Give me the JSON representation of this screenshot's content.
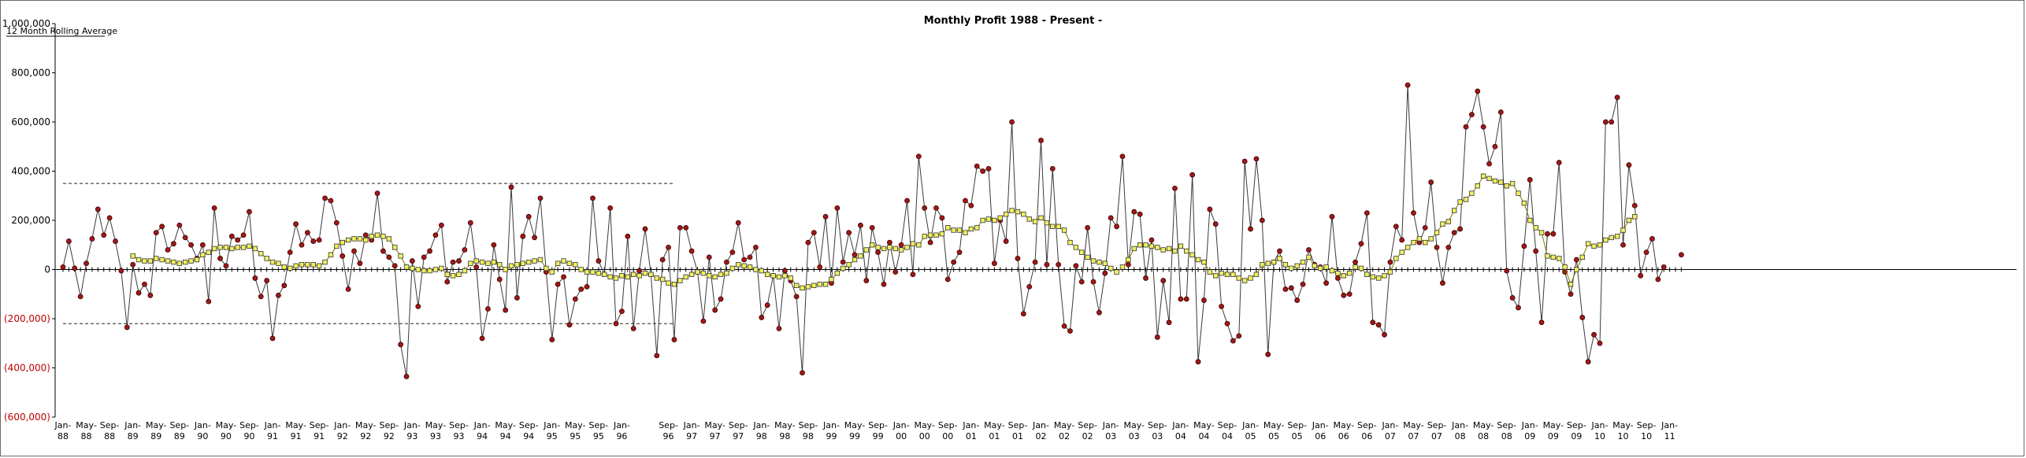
{
  "chart_data": {
    "type": "line",
    "title": "Monthly Profit 1988 - Present  -",
    "legend_label": "12 Month Rolling Average",
    "legend_placement": "top-left",
    "ylim": [
      -600000,
      1000000
    ],
    "y_ticks": [
      {
        "value": 1000000,
        "label": "1,000,000"
      },
      {
        "value": 800000,
        "label": "800,000"
      },
      {
        "value": 600000,
        "label": "600,000"
      },
      {
        "value": 400000,
        "label": "400,000"
      },
      {
        "value": 200000,
        "label": "200,000"
      },
      {
        "value": 0,
        "label": "0"
      },
      {
        "value": -200000,
        "label": "(200,000)"
      },
      {
        "value": -400000,
        "label": "(400,000)"
      },
      {
        "value": -600000,
        "label": "(600,000)"
      }
    ],
    "x_ticks": [
      {
        "i": 0,
        "l1": "Jan-",
        "l2": "88"
      },
      {
        "i": 4,
        "l1": "May-",
        "l2": "88"
      },
      {
        "i": 8,
        "l1": "Sep-",
        "l2": "88"
      },
      {
        "i": 12,
        "l1": "Jan-",
        "l2": "89"
      },
      {
        "i": 16,
        "l1": "May-",
        "l2": "89"
      },
      {
        "i": 20,
        "l1": "Sep-",
        "l2": "89"
      },
      {
        "i": 24,
        "l1": "Jan-",
        "l2": "90"
      },
      {
        "i": 28,
        "l1": "May-",
        "l2": "90"
      },
      {
        "i": 32,
        "l1": "Sep-",
        "l2": "90"
      },
      {
        "i": 36,
        "l1": "Jan-",
        "l2": "91"
      },
      {
        "i": 40,
        "l1": "May-",
        "l2": "91"
      },
      {
        "i": 44,
        "l1": "Sep-",
        "l2": "91"
      },
      {
        "i": 48,
        "l1": "Jan-",
        "l2": "92"
      },
      {
        "i": 52,
        "l1": "May-",
        "l2": "92"
      },
      {
        "i": 56,
        "l1": "Sep-",
        "l2": "92"
      },
      {
        "i": 60,
        "l1": "Jan-",
        "l2": "93"
      },
      {
        "i": 64,
        "l1": "May-",
        "l2": "93"
      },
      {
        "i": 68,
        "l1": "Sep-",
        "l2": "93"
      },
      {
        "i": 72,
        "l1": "Jan-",
        "l2": "94"
      },
      {
        "i": 76,
        "l1": "May-",
        "l2": "94"
      },
      {
        "i": 80,
        "l1": "Sep-",
        "l2": "94"
      },
      {
        "i": 84,
        "l1": "Jan-",
        "l2": "95"
      },
      {
        "i": 88,
        "l1": "May-",
        "l2": "95"
      },
      {
        "i": 92,
        "l1": "Sep-",
        "l2": "95"
      },
      {
        "i": 96,
        "l1": "Jan-",
        "l2": "96"
      },
      {
        "i": 104,
        "l1": "Sep-",
        "l2": "96"
      },
      {
        "i": 108,
        "l1": "Jan-",
        "l2": "97"
      },
      {
        "i": 112,
        "l1": "May-",
        "l2": "97"
      },
      {
        "i": 116,
        "l1": "Sep-",
        "l2": "97"
      },
      {
        "i": 120,
        "l1": "Jan-",
        "l2": "98"
      },
      {
        "i": 124,
        "l1": "May-",
        "l2": "98"
      },
      {
        "i": 128,
        "l1": "Sep-",
        "l2": "98"
      },
      {
        "i": 132,
        "l1": "Jan-",
        "l2": "99"
      },
      {
        "i": 136,
        "l1": "May-",
        "l2": "99"
      },
      {
        "i": 140,
        "l1": "Sep-",
        "l2": "99"
      },
      {
        "i": 144,
        "l1": "Jan-",
        "l2": "00"
      },
      {
        "i": 148,
        "l1": "May-",
        "l2": "00"
      },
      {
        "i": 152,
        "l1": "Sep-",
        "l2": "00"
      },
      {
        "i": 156,
        "l1": "Jan-",
        "l2": "01"
      },
      {
        "i": 160,
        "l1": "May-",
        "l2": "01"
      },
      {
        "i": 164,
        "l1": "Sep-",
        "l2": "01"
      },
      {
        "i": 168,
        "l1": "Jan-",
        "l2": "02"
      },
      {
        "i": 172,
        "l1": "May-",
        "l2": "02"
      },
      {
        "i": 176,
        "l1": "Sep-",
        "l2": "02"
      },
      {
        "i": 180,
        "l1": "Jan-",
        "l2": "03"
      },
      {
        "i": 184,
        "l1": "May-",
        "l2": "03"
      },
      {
        "i": 188,
        "l1": "Sep-",
        "l2": "03"
      },
      {
        "i": 192,
        "l1": "Jan-",
        "l2": "04"
      },
      {
        "i": 196,
        "l1": "May-",
        "l2": "04"
      },
      {
        "i": 200,
        "l1": "Sep-",
        "l2": "04"
      },
      {
        "i": 204,
        "l1": "Jan-",
        "l2": "05"
      },
      {
        "i": 208,
        "l1": "May-",
        "l2": "05"
      },
      {
        "i": 212,
        "l1": "Sep-",
        "l2": "05"
      },
      {
        "i": 216,
        "l1": "Jan-",
        "l2": "06"
      },
      {
        "i": 220,
        "l1": "May-",
        "l2": "06"
      },
      {
        "i": 224,
        "l1": "Sep-",
        "l2": "06"
      },
      {
        "i": 228,
        "l1": "Jan-",
        "l2": "07"
      },
      {
        "i": 232,
        "l1": "May-",
        "l2": "07"
      },
      {
        "i": 236,
        "l1": "Sep-",
        "l2": "07"
      },
      {
        "i": 240,
        "l1": "Jan-",
        "l2": "08"
      },
      {
        "i": 244,
        "l1": "May-",
        "l2": "08"
      },
      {
        "i": 248,
        "l1": "Sep-",
        "l2": "08"
      },
      {
        "i": 252,
        "l1": "Jan-",
        "l2": "09"
      },
      {
        "i": 256,
        "l1": "May-",
        "l2": "09"
      },
      {
        "i": 260,
        "l1": "Sep-",
        "l2": "09"
      },
      {
        "i": 264,
        "l1": "Jan-",
        "l2": "10"
      },
      {
        "i": 268,
        "l1": "May-",
        "l2": "10"
      },
      {
        "i": 272,
        "l1": "Sep-",
        "l2": "10"
      },
      {
        "i": 276,
        "l1": "Jan-",
        "l2": "11"
      }
    ],
    "reference_lines": [
      {
        "value": 350000,
        "from_index": 0,
        "to_index": 105,
        "style": "dashed"
      },
      {
        "value": -220000,
        "from_index": 0,
        "to_index": 105,
        "style": "dashed"
      }
    ],
    "grid": false,
    "series": [
      {
        "role": "monthly",
        "color": "#a01818",
        "marker": "circle",
        "values": [
          10000,
          115000,
          5000,
          -110000,
          25000,
          125000,
          245000,
          140000,
          210000,
          115000,
          -5000,
          -235000,
          20000,
          -95000,
          -60000,
          -105000,
          150000,
          175000,
          80000,
          105000,
          180000,
          130000,
          100000,
          45000,
          100000,
          -130000,
          250000,
          45000,
          15000,
          135000,
          120000,
          140000,
          235000,
          -35000,
          -110000,
          -45000,
          -280000,
          -105000,
          -65000,
          70000,
          185000,
          100000,
          150000,
          115000,
          120000,
          290000,
          280000,
          190000,
          55000,
          -80000,
          75000,
          25000,
          140000,
          120000,
          310000,
          75000,
          50000,
          15000,
          -305000,
          -435000,
          35000,
          -150000,
          50000,
          75000,
          140000,
          180000,
          -50000,
          30000,
          35000,
          80000,
          190000,
          10000,
          -280000,
          -160000,
          100000,
          -40000,
          -165000,
          335000,
          -115000,
          135000,
          215000,
          130000,
          290000,
          -10000,
          -285000,
          -60000,
          -30000,
          -225000,
          -120000,
          -80000,
          -70000,
          290000,
          35000,
          -20000,
          250000,
          -220000,
          -170000,
          135000,
          -240000,
          -5000,
          165000,
          -20000,
          -350000,
          40000,
          90000,
          -285000,
          170000,
          170000,
          75000,
          -10000,
          -210000,
          50000,
          -165000,
          -120000,
          30000,
          70000,
          190000,
          40000,
          50000,
          90000,
          -195000,
          -145000,
          -25000,
          -240000,
          -5000,
          -45000,
          -110000,
          -420000,
          110000,
          150000,
          10000,
          215000,
          -55000,
          250000,
          30000,
          150000,
          60000,
          180000,
          -45000,
          170000,
          70000,
          -60000,
          110000,
          -10000,
          100000,
          280000,
          -20000,
          460000,
          250000,
          110000,
          250000,
          210000,
          -40000,
          30000,
          70000,
          280000,
          260000,
          420000,
          400000,
          410000,
          25000,
          200000,
          115000,
          600000,
          45000,
          -180000,
          -70000,
          30000,
          525000,
          20000,
          410000,
          20000,
          -230000,
          -250000,
          15000,
          -50000,
          170000,
          -50000,
          -175000,
          -15000,
          210000,
          175000,
          460000,
          20000,
          235000,
          225000,
          -35000,
          120000,
          -275000,
          -45000,
          -215000,
          330000,
          -120000,
          -120000,
          385000,
          -375000,
          -125000,
          245000,
          185000,
          -150000,
          -220000,
          -290000,
          -270000,
          440000,
          165000,
          450000,
          200000,
          -345000,
          30000,
          75000,
          -80000,
          -75000,
          -125000,
          -60000,
          80000,
          20000,
          10000,
          -55000,
          215000,
          -35000,
          -105000,
          -100000,
          30000,
          105000,
          230000,
          -215000,
          -225000,
          -265000,
          30000,
          175000,
          120000,
          750000,
          230000,
          110000,
          170000,
          355000,
          90000,
          -55000,
          90000,
          150000,
          165000,
          580000,
          630000,
          725000,
          580000,
          430000,
          500000,
          640000,
          -5000,
          -115000,
          -155000,
          95000,
          365000,
          75000,
          -215000,
          145000,
          145000,
          435000,
          -10000,
          -100000,
          40000,
          -195000,
          -375000,
          -265000,
          -300000,
          600000,
          600000,
          700000,
          100000,
          425000,
          260000,
          -25000,
          70000,
          125000,
          -40000,
          10000,
          null,
          null,
          60000
        ]
      },
      {
        "role": "rolling_average",
        "name": "12 Month Rolling Average",
        "color": "#f0f060",
        "marker": "square",
        "values": [
          null,
          null,
          null,
          null,
          null,
          null,
          null,
          null,
          null,
          null,
          null,
          null,
          55000,
          40000,
          35000,
          35000,
          45000,
          40000,
          35000,
          30000,
          25000,
          30000,
          35000,
          40000,
          60000,
          70000,
          85000,
          90000,
          90000,
          85000,
          90000,
          90000,
          95000,
          85000,
          65000,
          45000,
          30000,
          25000,
          10000,
          5000,
          15000,
          20000,
          20000,
          20000,
          15000,
          30000,
          60000,
          95000,
          110000,
          120000,
          125000,
          125000,
          120000,
          135000,
          140000,
          135000,
          125000,
          90000,
          55000,
          10000,
          5000,
          0,
          -5000,
          -5000,
          0,
          5000,
          -20000,
          -25000,
          -20000,
          -5000,
          25000,
          35000,
          30000,
          25000,
          30000,
          20000,
          0,
          15000,
          20000,
          25000,
          30000,
          35000,
          40000,
          5000,
          -10000,
          25000,
          35000,
          25000,
          20000,
          0,
          -10000,
          -10000,
          -15000,
          -20000,
          -30000,
          -35000,
          -25000,
          -30000,
          -20000,
          -25000,
          -15000,
          -20000,
          -35000,
          -40000,
          -55000,
          -60000,
          -45000,
          -30000,
          -20000,
          -10000,
          -15000,
          -25000,
          -30000,
          -20000,
          -15000,
          5000,
          20000,
          15000,
          10000,
          0,
          -5000,
          -20000,
          -25000,
          -30000,
          -25000,
          -35000,
          -65000,
          -75000,
          -70000,
          -65000,
          -60000,
          -60000,
          -40000,
          -15000,
          5000,
          20000,
          40000,
          55000,
          80000,
          100000,
          90000,
          85000,
          90000,
          85000,
          80000,
          90000,
          105000,
          100000,
          135000,
          140000,
          140000,
          145000,
          170000,
          160000,
          160000,
          150000,
          165000,
          170000,
          200000,
          205000,
          200000,
          210000,
          225000,
          240000,
          235000,
          225000,
          205000,
          195000,
          210000,
          190000,
          175000,
          175000,
          160000,
          110000,
          90000,
          70000,
          50000,
          35000,
          30000,
          25000,
          5000,
          -10000,
          10000,
          40000,
          85000,
          100000,
          100000,
          95000,
          90000,
          80000,
          85000,
          75000,
          95000,
          75000,
          60000,
          40000,
          30000,
          -10000,
          -25000,
          -15000,
          -20000,
          -20000,
          -35000,
          -45000,
          -35000,
          -20000,
          20000,
          25000,
          30000,
          45000,
          20000,
          5000,
          15000,
          30000,
          50000,
          15000,
          5000,
          10000,
          -5000,
          -15000,
          -25000,
          -15000,
          10000,
          5000,
          -20000,
          -30000,
          -35000,
          -25000,
          -10000,
          45000,
          70000,
          90000,
          110000,
          125000,
          110000,
          125000,
          150000,
          185000,
          195000,
          240000,
          275000,
          285000,
          310000,
          340000,
          380000,
          370000,
          360000,
          355000,
          340000,
          350000,
          310000,
          270000,
          200000,
          170000,
          150000,
          55000,
          50000,
          45000,
          10000,
          -60000,
          0,
          50000,
          105000,
          95000,
          100000,
          120000,
          130000,
          135000,
          160000,
          200000,
          215000,
          null,
          null,
          null
        ]
      }
    ]
  }
}
